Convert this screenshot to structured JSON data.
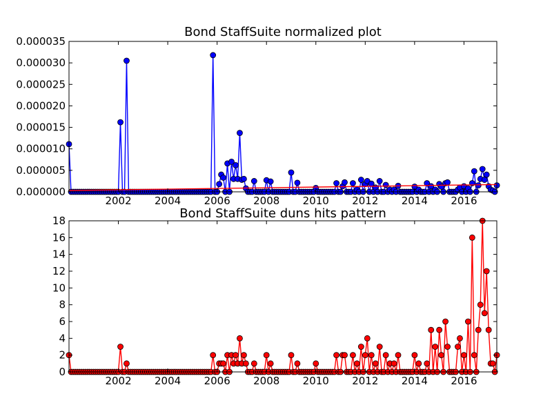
{
  "chart_data": [
    {
      "type": "line",
      "title": "Bond StaffSuite normalized plot",
      "xlabel": "",
      "ylabel": "",
      "xlim": [
        2000.0,
        2017.33
      ],
      "ylim": [
        0,
        3.5e-05
      ],
      "x_ticks": [
        "2002",
        "2004",
        "2006",
        "2008",
        "2010",
        "2012",
        "2014",
        "2016"
      ],
      "y_ticks": [
        "0.000000",
        "0.000005",
        "0.000010",
        "0.000015",
        "0.000020",
        "0.000025",
        "0.000030",
        "0.000035"
      ],
      "grid": false,
      "colors": {
        "series": "#0000ff",
        "trend": "#ff0000"
      },
      "trend": {
        "x": [
          2000.0,
          2017.33
        ],
        "y": [
          3e-07,
          1.7e-06
        ]
      },
      "series": [
        {
          "x": [
            2000.0,
            2002.08,
            2002.33,
            2005.83,
            2006.08,
            2006.17,
            2006.25,
            2006.42,
            2006.58,
            2006.67,
            2006.75,
            2006.83,
            2006.92,
            2007.0,
            2007.08,
            2007.17,
            2007.5,
            2008.0,
            2008.17,
            2009.0,
            2009.25,
            2010.0,
            2010.83,
            2011.08,
            2011.17,
            2011.5,
            2011.67,
            2011.83,
            2012.0,
            2012.08,
            2012.25,
            2012.42,
            2012.58,
            2012.83,
            2013.0,
            2013.17,
            2013.33,
            2014.0,
            2014.17,
            2014.5,
            2014.67,
            2014.83,
            2015.0,
            2015.08,
            2015.25,
            2015.33,
            2015.75,
            2015.83,
            2016.0,
            2016.17,
            2016.33,
            2016.42,
            2016.58,
            2016.67,
            2016.75,
            2016.83,
            2016.92,
            2017.0,
            2017.08,
            2017.17,
            2017.33
          ],
          "y": [
            1.11e-05,
            1.62e-05,
            3.05e-05,
            3.18e-05,
            1.8e-06,
            4e-06,
            3.3e-06,
            6.6e-06,
            7e-06,
            3e-06,
            6.2e-06,
            3e-06,
            1.37e-05,
            2.8e-06,
            3e-06,
            8e-07,
            2.5e-06,
            2.7e-06,
            2.4e-06,
            4.5e-06,
            2.1e-06,
            9e-07,
            2e-06,
            1.3e-06,
            2.2e-06,
            2e-06,
            5e-07,
            2.8e-06,
            1.8e-06,
            2.5e-06,
            1.9e-06,
            1e-06,
            2.5e-06,
            1.6e-06,
            5e-07,
            5e-07,
            1.4e-06,
            1.2e-06,
            5e-07,
            2e-06,
            1.3e-06,
            5e-07,
            1.8e-06,
            1.2e-06,
            2e-06,
            2.2e-06,
            5e-07,
            1e-06,
            1.3e-06,
            8e-07,
            2e-06,
            4.8e-06,
            1.5e-06,
            3e-06,
            5.3e-06,
            2.8e-06,
            4e-06,
            1.3e-06,
            5e-07,
            3e-07,
            1.5e-06
          ]
        }
      ]
    },
    {
      "type": "line",
      "title": "Bond StaffSuite duns hits pattern",
      "xlabel": "",
      "ylabel": "",
      "xlim": [
        2000.0,
        2017.33
      ],
      "ylim": [
        0,
        18
      ],
      "x_ticks": [
        "2002",
        "2004",
        "2006",
        "2008",
        "2010",
        "2012",
        "2014",
        "2016"
      ],
      "y_ticks": [
        "0",
        "2",
        "4",
        "6",
        "8",
        "10",
        "12",
        "14",
        "16",
        "18"
      ],
      "grid": false,
      "colors": {
        "series": "#ff0000"
      },
      "series": [
        {
          "x": [
            2000.0,
            2002.08,
            2002.33,
            2005.83,
            2006.08,
            2006.17,
            2006.25,
            2006.42,
            2006.58,
            2006.67,
            2006.75,
            2006.83,
            2006.92,
            2007.0,
            2007.08,
            2007.17,
            2007.5,
            2008.0,
            2008.17,
            2009.0,
            2009.25,
            2010.0,
            2010.83,
            2011.08,
            2011.17,
            2011.5,
            2011.67,
            2011.83,
            2012.0,
            2012.08,
            2012.25,
            2012.42,
            2012.58,
            2012.83,
            2013.0,
            2013.17,
            2013.33,
            2014.0,
            2014.17,
            2014.5,
            2014.67,
            2014.83,
            2015.0,
            2015.08,
            2015.25,
            2015.33,
            2015.75,
            2015.83,
            2016.0,
            2016.17,
            2016.33,
            2016.42,
            2016.58,
            2016.67,
            2016.75,
            2016.83,
            2016.92,
            2017.0,
            2017.08,
            2017.17,
            2017.33
          ],
          "y": [
            2,
            3,
            1,
            2,
            1,
            1,
            1,
            2,
            2,
            1,
            2,
            1,
            4,
            1,
            2,
            1,
            1,
            2,
            1,
            2,
            1,
            1,
            2,
            2,
            2,
            2,
            1,
            3,
            2,
            4,
            2,
            1,
            3,
            2,
            1,
            1,
            2,
            2,
            1,
            1,
            5,
            3,
            5,
            2,
            6,
            3,
            3,
            4,
            2,
            6,
            16,
            2,
            5,
            8,
            18,
            7,
            12,
            5,
            1,
            1,
            2
          ]
        }
      ]
    }
  ]
}
